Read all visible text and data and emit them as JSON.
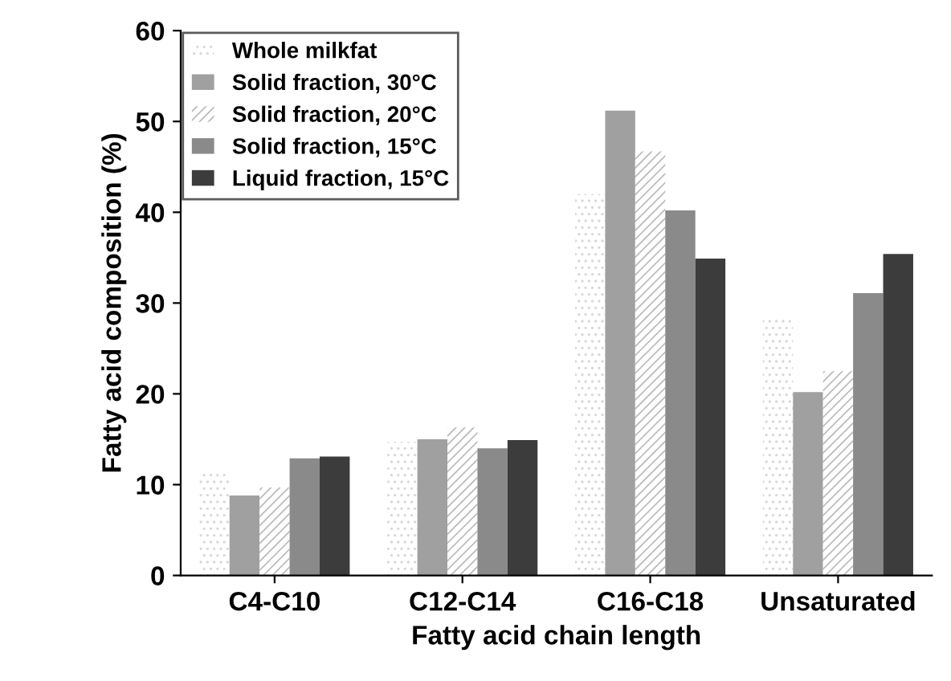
{
  "chart_data": {
    "type": "bar",
    "xlabel": "Fatty acid chain length",
    "ylabel": "Fatty acid composition (%)",
    "categories": [
      "C4-C10",
      "C12-C14",
      "C16-C18",
      "Unsaturated"
    ],
    "series": [
      {
        "name": "Whole milkfat",
        "color": "#d8d8d8",
        "values": [
          11.3,
          14.7,
          42.0,
          28.3
        ]
      },
      {
        "name": "Solid fraction, 30°C",
        "color": "#a0a0a0",
        "values": [
          8.8,
          15.0,
          51.2,
          20.2
        ]
      },
      {
        "name": "Solid fraction, 20°C",
        "color": "#b8b8b8",
        "values": [
          9.7,
          16.3,
          46.7,
          22.5
        ]
      },
      {
        "name": "Solid fraction, 15°C",
        "color": "#8a8a8a",
        "values": [
          12.9,
          14.0,
          40.2,
          31.1
        ]
      },
      {
        "name": "Liquid fraction, 15°C",
        "color": "#3c3c3c",
        "values": [
          13.1,
          14.9,
          34.9,
          35.4
        ]
      }
    ],
    "ylim": [
      0,
      60
    ],
    "yticks": [
      0,
      10,
      20,
      30,
      40,
      50,
      60
    ],
    "grid": false,
    "legend": "top left"
  }
}
